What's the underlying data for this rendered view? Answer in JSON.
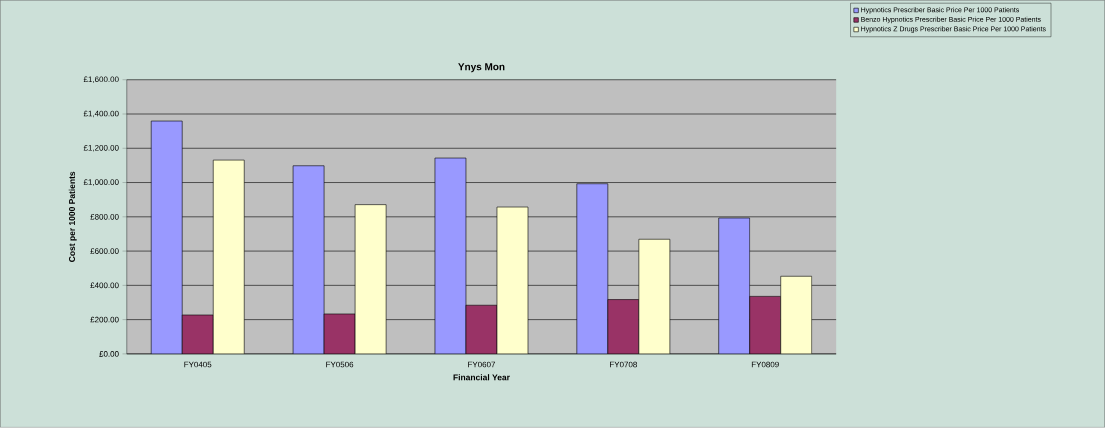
{
  "chart_data": {
    "type": "bar",
    "title": "Ynys Mon",
    "xlabel": "Financial Year",
    "ylabel": "Cost per 1000 Patients",
    "categories": [
      "FY0405",
      "FY0506",
      "FY0607",
      "FY0708",
      "FY0809"
    ],
    "series": [
      {
        "name": "Hypnotics Prescriber Basic Price Per 1000 Patients",
        "color": "#9999ff",
        "values": [
          1359,
          1098,
          1143,
          993,
          793
        ]
      },
      {
        "name": "Benzo Hypnotics Prescriber Basic Price Per 1000 Patients",
        "color": "#993366",
        "values": [
          227,
          233,
          284,
          317,
          336
        ]
      },
      {
        "name": "Hypnotics Z Drugs Prescriber Basic Price Per 1000 Patients",
        "color": "#ffffcc",
        "values": [
          1131,
          871,
          857,
          669,
          453
        ]
      }
    ],
    "ylim": [
      0,
      1600
    ],
    "yticks": [
      {
        "value": 0,
        "label": "£0.00"
      },
      {
        "value": 200,
        "label": "£200.00"
      },
      {
        "value": 400,
        "label": "£400.00"
      },
      {
        "value": 600,
        "label": "£600.00"
      },
      {
        "value": 800,
        "label": "£800.00"
      },
      {
        "value": 1000,
        "label": "£1,000.00"
      },
      {
        "value": 1200,
        "label": "£1,200.00"
      },
      {
        "value": 1400,
        "label": "£1,400.00"
      },
      {
        "value": 1600,
        "label": "£1,600.00"
      }
    ],
    "grid": "y",
    "legend": "top right"
  }
}
